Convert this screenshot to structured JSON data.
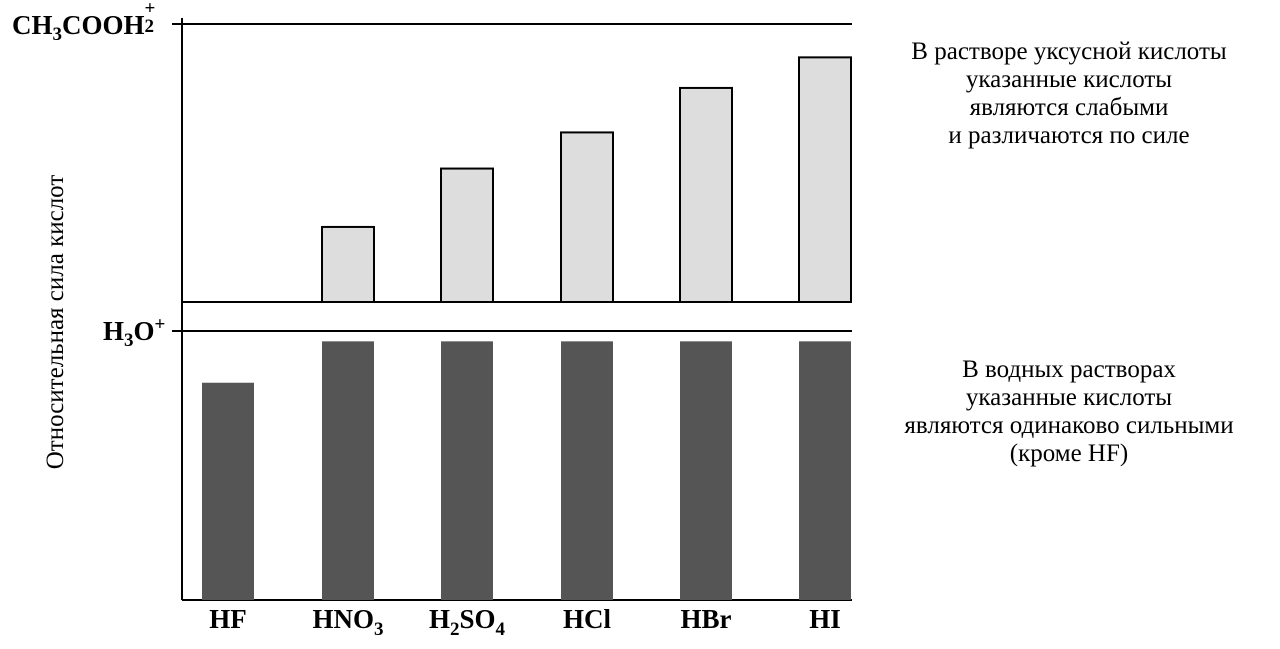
{
  "chart_data": [
    {
      "type": "bar",
      "panel": "upper",
      "reference_label": {
        "base": "CH",
        "s1": "3",
        "mid": "COOH",
        "sub": "2",
        "sup": "+"
      },
      "ylabel": "",
      "categories": [
        "HF",
        "HNO3",
        "H2SO4",
        "HCl",
        "HBr",
        "HI"
      ],
      "values": [
        null,
        0.27,
        0.48,
        0.61,
        0.77,
        0.88
      ],
      "ylim": [
        0,
        1
      ],
      "colors": {
        "fill": "#dddddd",
        "stroke": "#000000"
      },
      "grid": false,
      "annotation": [
        "В растворе уксусной кислоты",
        "указанные кислоты",
        "являются слабыми",
        "и различаются по силе"
      ]
    },
    {
      "type": "bar",
      "panel": "lower",
      "reference_label": {
        "base": "H",
        "sub": "3",
        "mid": "O",
        "sup": "+"
      },
      "ylabel": "Относительная сила кислот",
      "categories": [
        "HF",
        "HNO3",
        "H2SO4",
        "HCl",
        "HBr",
        "HI"
      ],
      "values": [
        0.84,
        1.0,
        1.0,
        1.0,
        1.0,
        1.0
      ],
      "ylim": [
        0,
        1.04
      ],
      "colors": {
        "fill": "#555555"
      },
      "grid": false,
      "annotation": [
        "В водных растворах",
        "указанные кислоты",
        "являются одинаково сильными",
        "(кроме HF)"
      ]
    }
  ],
  "x_tick_labels": [
    {
      "base": "HF"
    },
    {
      "parts": [
        [
          "HNO",
          ""
        ],
        [
          "3",
          "sub"
        ]
      ]
    },
    {
      "parts": [
        [
          "H",
          ""
        ],
        [
          "2",
          "sub"
        ],
        [
          "SO",
          ""
        ],
        [
          "4",
          "sub"
        ]
      ]
    },
    {
      "base": "HCl"
    },
    {
      "base": "HBr"
    },
    {
      "base": "HI"
    }
  ]
}
